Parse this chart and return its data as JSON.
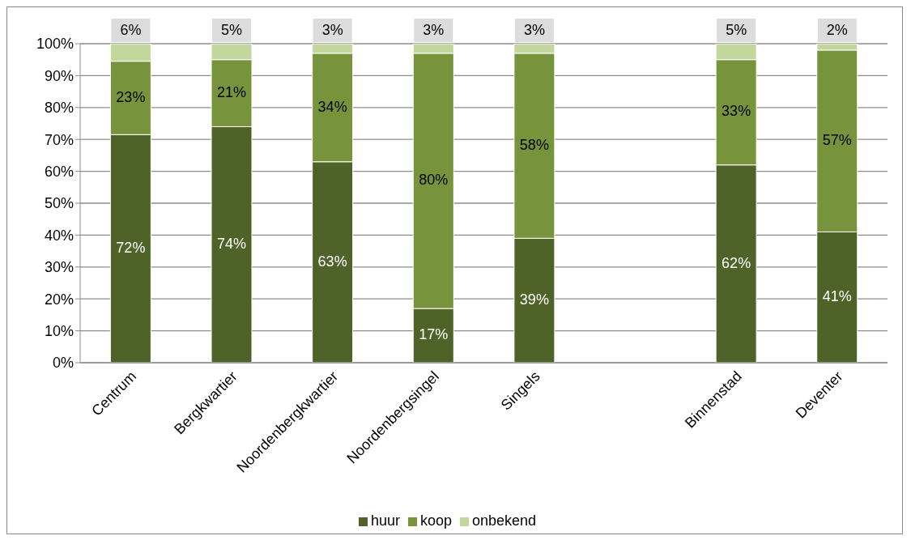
{
  "chart_data": {
    "type": "bar",
    "stacked": true,
    "categories": [
      "Centrum",
      "Bergkwartier",
      "Noordenbergkwartier",
      "Noordenbergsingel",
      "Singels",
      null,
      "Binnenstad",
      "Deventer"
    ],
    "series": [
      {
        "name": "huur",
        "color": "#4f6228",
        "values": [
          71.5,
          74,
          63,
          17,
          39,
          null,
          62,
          41
        ],
        "value_labels": [
          "72%",
          "74%",
          "63%",
          "17%",
          "39%",
          null,
          "62%",
          "41%"
        ]
      },
      {
        "name": "koop",
        "color": "#77933c",
        "values": [
          23,
          21,
          34,
          80,
          58,
          null,
          33,
          57
        ],
        "value_labels": [
          "23%",
          "21%",
          "34%",
          "80%",
          "58%",
          null,
          "33%",
          "57%"
        ]
      },
      {
        "name": "onbekend",
        "color": "#c3d69b",
        "values": [
          5.5,
          5,
          3,
          3,
          3,
          null,
          5,
          2
        ],
        "value_labels": [
          "6%",
          "5%",
          "3%",
          "3%",
          "3%",
          null,
          "5%",
          "2%"
        ]
      }
    ],
    "ylim": [
      0,
      100
    ],
    "yticks": [
      {
        "value": 0,
        "label": "0%"
      },
      {
        "value": 10,
        "label": "10%"
      },
      {
        "value": 20,
        "label": "20%"
      },
      {
        "value": 30,
        "label": "30%"
      },
      {
        "value": 40,
        "label": "40%"
      },
      {
        "value": 50,
        "label": "50%"
      },
      {
        "value": 60,
        "label": "60%"
      },
      {
        "value": 70,
        "label": "70%"
      },
      {
        "value": 80,
        "label": "80%"
      },
      {
        "value": 90,
        "label": "90%"
      },
      {
        "value": 100,
        "label": "100%"
      }
    ],
    "grid": "y",
    "legend": "bottom"
  }
}
